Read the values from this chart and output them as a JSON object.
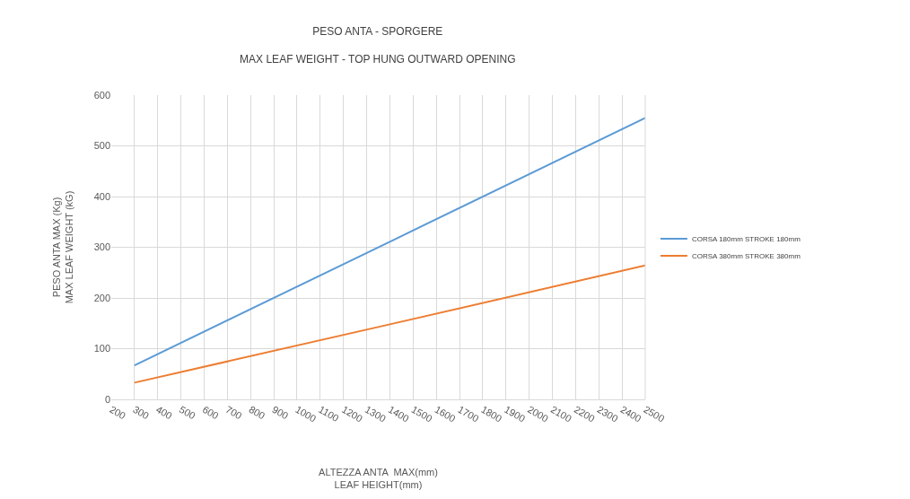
{
  "chart_data": {
    "type": "line",
    "title": "PESO ANTA - SPORGERE",
    "subtitle": "MAX LEAF WEIGHT - TOP HUNG OUTWARD OPENING",
    "xlabel": "ALTEZZA ANTA  MAX(mm)\nLEAF HEIGHT(mm)",
    "ylabel": "PESO ANTA MAX (Kg)\nMAX LEAF WEIGHT (kG)",
    "x": [
      300,
      1400,
      2500
    ],
    "series": [
      {
        "name": "CORSA 180mm STROKE 180mm",
        "color": "#5b9bd5",
        "values": [
          67,
          311,
          555
        ]
      },
      {
        "name": "CORSA 380mm STROKE 380mm",
        "color": "#ed7d31",
        "values": [
          33,
          148,
          264
        ]
      }
    ],
    "xlim": [
      200,
      2500
    ],
    "xticks": [
      200,
      300,
      400,
      500,
      600,
      700,
      800,
      900,
      1000,
      1100,
      1200,
      1300,
      1400,
      1500,
      1600,
      1700,
      1800,
      1900,
      2000,
      2100,
      2200,
      2300,
      2400,
      2500
    ],
    "ylim": [
      0,
      600
    ],
    "yticks": [
      0,
      100,
      200,
      300,
      400,
      500,
      600
    ],
    "grid": true,
    "legend": "right",
    "marker": "none",
    "line_style": "solid"
  }
}
